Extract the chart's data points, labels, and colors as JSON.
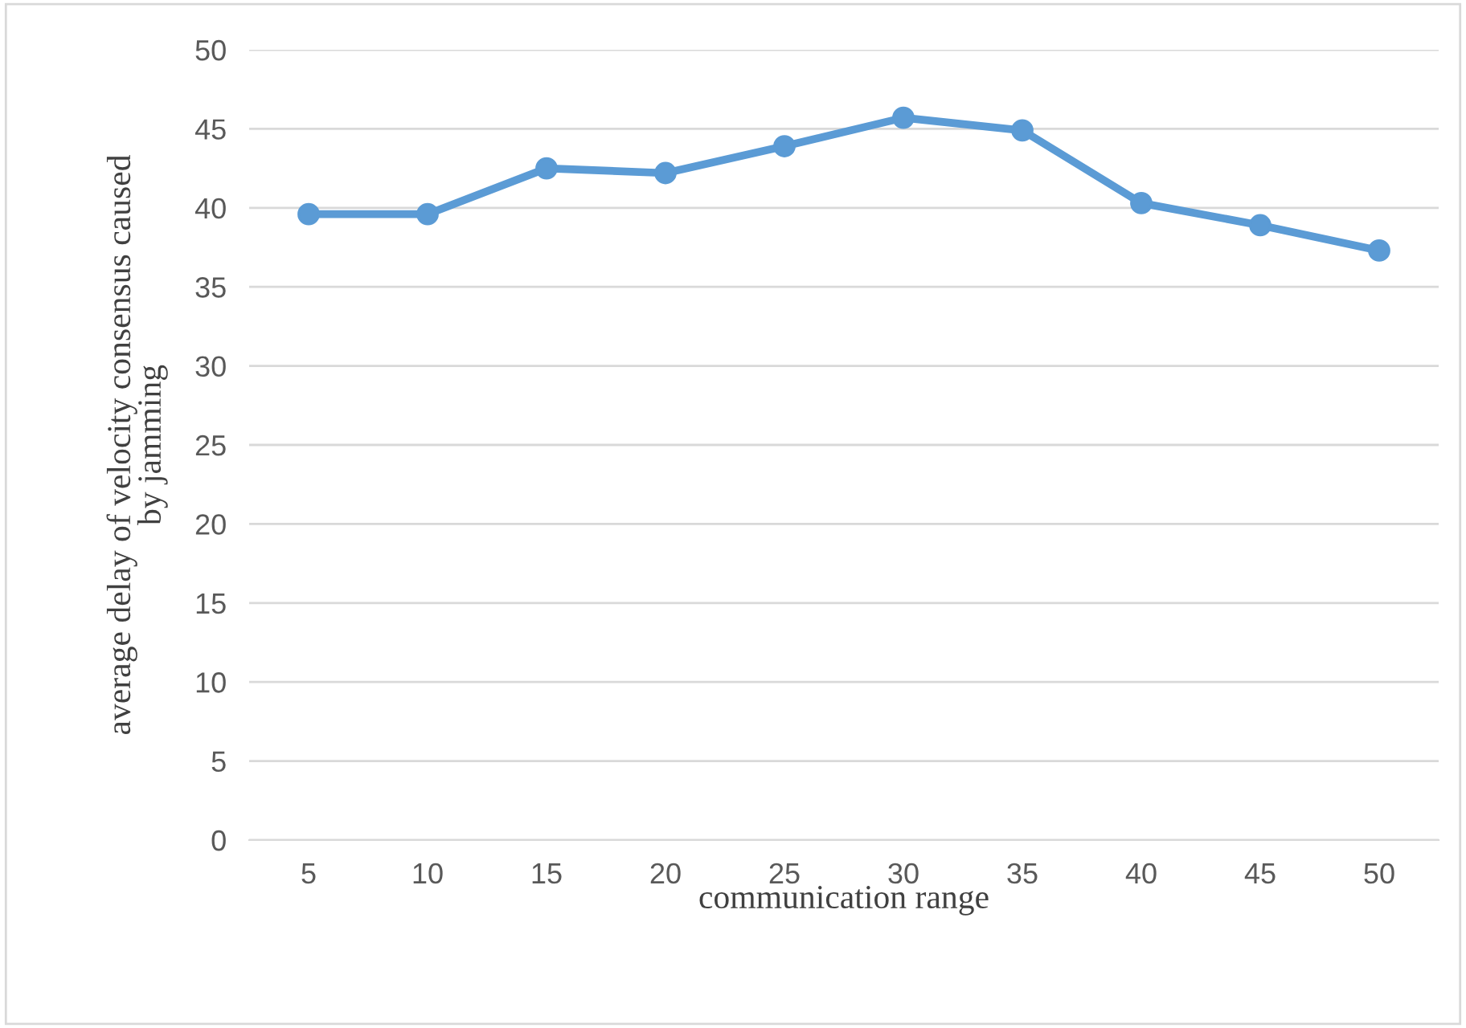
{
  "chart_data": {
    "type": "line",
    "xlabel": "communication range",
    "ylabel": "average delay of velocity consensus caused\nby jamming",
    "categories": [
      "5",
      "10",
      "15",
      "20",
      "25",
      "30",
      "35",
      "40",
      "45",
      "50"
    ],
    "series": [
      {
        "color": "#5b9bd5",
        "values": [
          39.6,
          39.6,
          42.5,
          42.2,
          43.9,
          45.7,
          44.9,
          40.3,
          38.9,
          37.3
        ]
      }
    ],
    "ylim": [
      0,
      50
    ],
    "yticks": [
      0,
      5,
      10,
      15,
      20,
      25,
      30,
      35,
      40,
      45,
      50
    ],
    "grid": "y",
    "marker": "circle",
    "line_style": "solid"
  }
}
